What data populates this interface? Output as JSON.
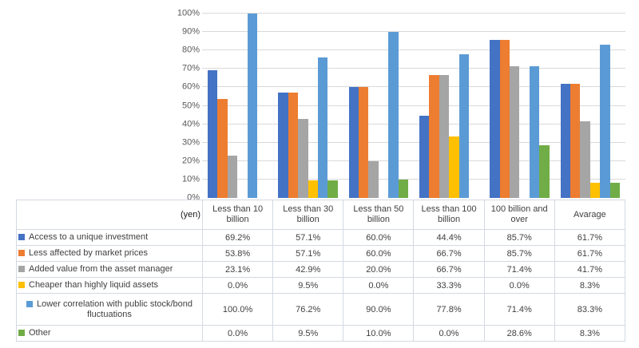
{
  "chart_data": {
    "type": "bar",
    "title": "",
    "xlabel": "",
    "ylabel": "",
    "unit_label": "(yen)",
    "ylim": [
      0,
      100
    ],
    "grid": true,
    "gridline_color": "#d9d9d9",
    "legend_position": "data-table-left",
    "yticks": [
      "0%",
      "10%",
      "20%",
      "30%",
      "40%",
      "50%",
      "60%",
      "70%",
      "80%",
      "90%",
      "100%"
    ],
    "categories": [
      "Less than 10 billion",
      "Less than 30 billion",
      "Less than 50 billion",
      "Less than 100 billion",
      "100 billion and over",
      "Avarage"
    ],
    "series": [
      {
        "name": "Access to a unique investment",
        "color": "#4472c4",
        "values": [
          69.2,
          57.1,
          60.0,
          44.4,
          85.7,
          61.7
        ]
      },
      {
        "name": "Less affected by market prices",
        "color": "#ed7d31",
        "values": [
          53.8,
          57.1,
          60.0,
          66.7,
          85.7,
          61.7
        ]
      },
      {
        "name": "Added value from the asset manager",
        "color": "#a5a5a5",
        "values": [
          23.1,
          42.9,
          20.0,
          66.7,
          71.4,
          41.7
        ]
      },
      {
        "name": "Cheaper than highly liquid assets",
        "color": "#ffc000",
        "values": [
          0.0,
          9.5,
          0.0,
          33.3,
          0.0,
          8.3
        ]
      },
      {
        "name": "Lower correlation with public stock/bond fluctuations",
        "color": "#5b9bd5",
        "values": [
          100.0,
          76.2,
          90.0,
          77.8,
          71.4,
          83.3
        ]
      },
      {
        "name": "Other",
        "color": "#70ad47",
        "values": [
          0.0,
          9.5,
          10.0,
          0.0,
          28.6,
          8.3
        ]
      }
    ]
  },
  "table": {
    "corner_label": "(yen)",
    "columns": [
      "Less than 10 billion",
      "Less than 30 billion",
      "Less than 50 billion",
      "Less than 100 billion",
      "100 billion and over",
      "Avarage"
    ],
    "rows": [
      {
        "label": "Access to a unique investment",
        "values": [
          "69.2%",
          "57.1%",
          "60.0%",
          "44.4%",
          "85.7%",
          "61.7%"
        ]
      },
      {
        "label": "Less affected by market prices",
        "values": [
          "53.8%",
          "57.1%",
          "60.0%",
          "66.7%",
          "85.7%",
          "61.7%"
        ]
      },
      {
        "label": "Added value from the asset manager",
        "values": [
          "23.1%",
          "42.9%",
          "20.0%",
          "66.7%",
          "71.4%",
          "41.7%"
        ]
      },
      {
        "label": "Cheaper than highly liquid assets",
        "values": [
          "0.0%",
          "9.5%",
          "0.0%",
          "33.3%",
          "0.0%",
          "8.3%"
        ]
      },
      {
        "label": "Lower correlation with public stock/bond fluctuations",
        "values": [
          "100.0%",
          "76.2%",
          "90.0%",
          "77.8%",
          "71.4%",
          "83.3%"
        ]
      },
      {
        "label": "Other",
        "values": [
          "0.0%",
          "9.5%",
          "10.0%",
          "0.0%",
          "28.6%",
          "8.3%"
        ]
      }
    ]
  }
}
